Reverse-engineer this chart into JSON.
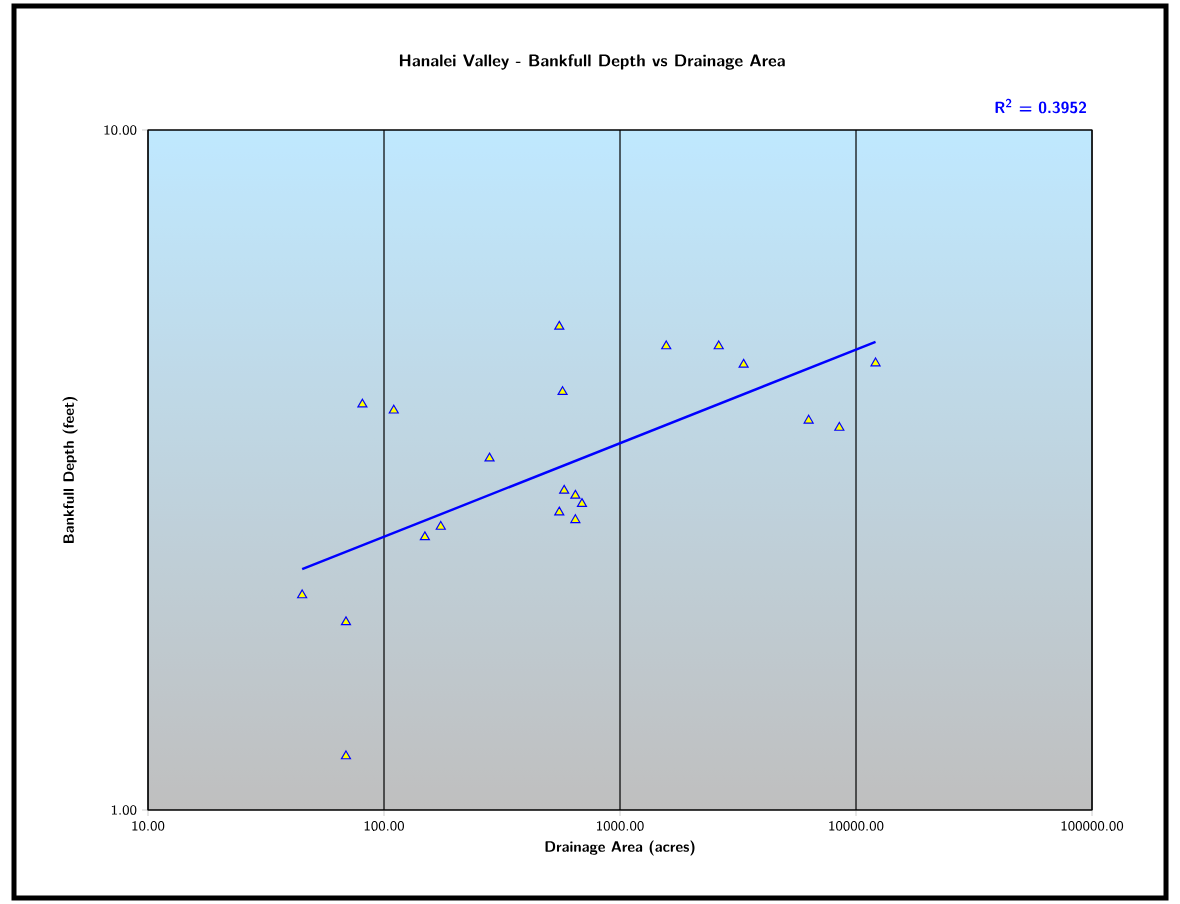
{
  "chart_data": {
    "type": "scatter",
    "title": "Hanalei Valley - Bankfull Depth vs Drainage Area",
    "xlabel": "Drainage Area (acres)",
    "ylabel": "Bankfull Depth (feet)",
    "annotations": [
      "R$^{2}$ = 0.3952"
    ],
    "log": "xy",
    "grid": true,
    "marker": "triangle",
    "xlim": [
      10,
      100000
    ],
    "ylim": [
      1,
      10
    ],
    "xticks": [
      {
        "value": 10,
        "label": "10.00"
      },
      {
        "value": 100,
        "label": "100.00"
      },
      {
        "value": 1000,
        "label": "1000.00"
      },
      {
        "value": 10000,
        "label": "10000.00"
      },
      {
        "value": 100000,
        "label": "100000.00"
      }
    ],
    "yticks": [
      {
        "value": 1,
        "label": "1.00"
      },
      {
        "value": 10,
        "label": "10.00"
      }
    ],
    "series": [
      {
        "color": "#ffff00",
        "x": [
          45,
          69,
          69,
          81,
          110,
          280,
          149,
          174,
          553,
          571,
          580,
          647,
          690,
          553,
          647,
          1570,
          2620,
          3340,
          6300,
          8500,
          12100
        ],
        "values": [
          2.07,
          1.89,
          1.2,
          3.95,
          3.87,
          3.29,
          2.52,
          2.61,
          5.14,
          4.12,
          2.95,
          2.9,
          2.82,
          2.74,
          2.67,
          4.81,
          4.81,
          4.52,
          3.74,
          3.65,
          4.54
        ]
      },
      {
        "type": "line",
        "marker": "none",
        "color": "#0000ff",
        "x": [
          45,
          12100
        ],
        "values": [
          2.26,
          4.88
        ]
      }
    ]
  }
}
